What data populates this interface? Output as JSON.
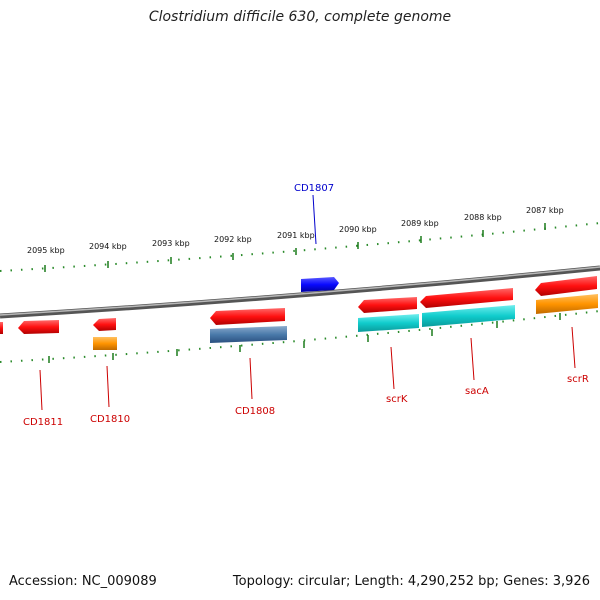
{
  "title": "Clostridium difficile 630, complete genome",
  "footer": {
    "accession": "Accession: NC_009089",
    "summary": "Topology: circular; Length: 4,290,252 bp; Genes: 3,926"
  },
  "kbp_ticks": [
    "2095 kbp",
    "2094 kbp",
    "2093 kbp",
    "2092 kbp",
    "2091 kbp",
    "2090 kbp",
    "2089 kbp",
    "2088 kbp",
    "2087 kbp"
  ],
  "gene_labels": {
    "cd1807": "CD1807",
    "cd1811": "CD1811",
    "cd1810": "CD1810",
    "cd1808": "CD1808",
    "scrk": "scrK",
    "saca": "sacA",
    "scrr": "scrR"
  },
  "colors": {
    "backbone": "#888888",
    "forward_gene": "#1a1aff",
    "cds": "#ff1a1a",
    "gene_orange": "#ff9a1a",
    "gene_cyan": "#1acccc",
    "gene_steelblue": "#4a7aaa",
    "tick": "#2a8a2a",
    "label_red": "#cc0000",
    "label_blue": "#0000cc"
  }
}
